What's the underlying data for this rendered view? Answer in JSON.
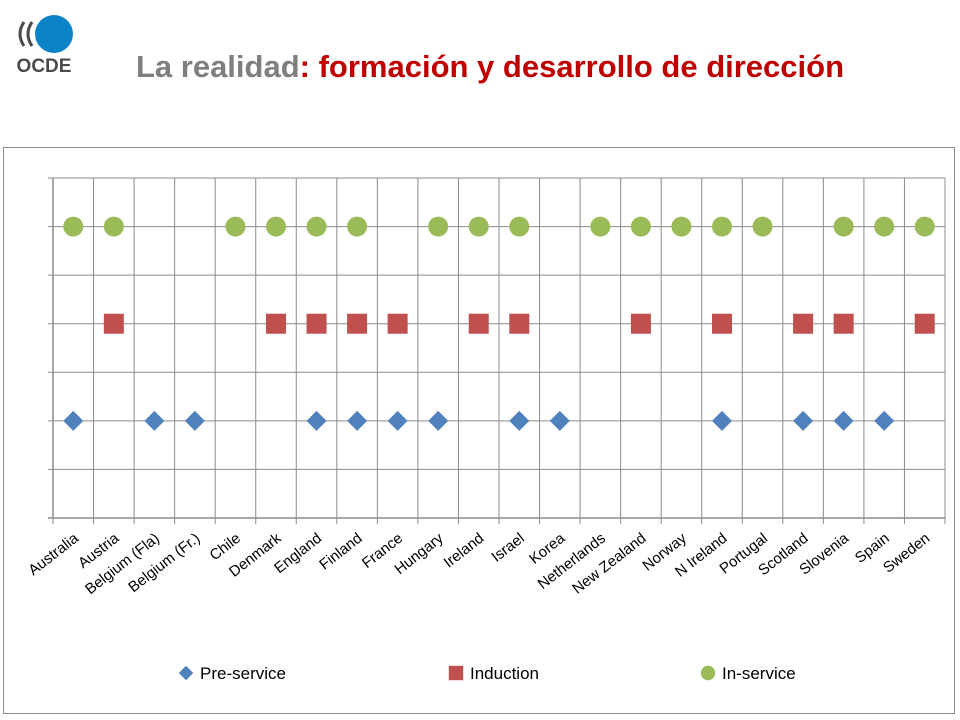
{
  "header": {
    "logo_text": "OCDE",
    "title_part1": "La realidad",
    "title_part2": ": formación y desarrollo de dirección"
  },
  "chart_data": {
    "type": "scatter",
    "categories": [
      "Australia",
      "Austria",
      "Belgium (Fla)",
      "Belgium (Fr.)",
      "Chile",
      "Denmark",
      "England",
      "Finland",
      "France",
      "Hungary",
      "Ireland",
      "Israel",
      "Korea",
      "Netherlands",
      "New Zealand",
      "Norway",
      "N Ireland",
      "Portugal",
      "Scotland",
      "Slovenia",
      "Spain",
      "Sweden"
    ],
    "ylim": [
      0,
      7
    ],
    "grid": true,
    "legend_position": "bottom",
    "series": [
      {
        "name": "Pre-service",
        "marker": "diamond",
        "color": "#4f81bd",
        "y": 2,
        "present": [
          "Australia",
          "Belgium (Fla)",
          "Belgium (Fr.)",
          "England",
          "Finland",
          "France",
          "Hungary",
          "Israel",
          "Korea",
          "N Ireland",
          "Scotland",
          "Slovenia",
          "Spain"
        ]
      },
      {
        "name": "Induction",
        "marker": "square",
        "color": "#c0504d",
        "y": 4,
        "present": [
          "Austria",
          "Denmark",
          "England",
          "Finland",
          "France",
          "Ireland",
          "Israel",
          "New Zealand",
          "N Ireland",
          "Scotland",
          "Slovenia",
          "Sweden"
        ]
      },
      {
        "name": "In-service",
        "marker": "circle",
        "color": "#9bbb59",
        "y": 6,
        "present": [
          "Australia",
          "Austria",
          "Chile",
          "Denmark",
          "England",
          "Finland",
          "Hungary",
          "Ireland",
          "Israel",
          "Netherlands",
          "New Zealand",
          "Norway",
          "N Ireland",
          "Portugal",
          "Slovenia",
          "Spain",
          "Sweden"
        ]
      }
    ]
  }
}
